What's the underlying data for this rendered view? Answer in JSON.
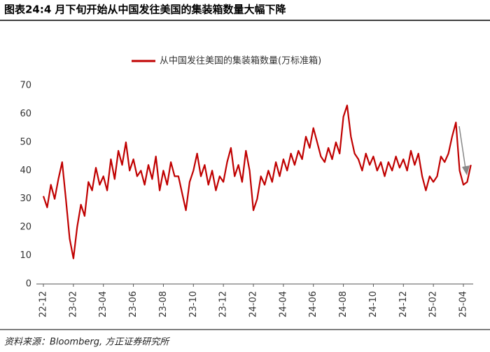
{
  "chart_data": {
    "type": "line",
    "title": "图表24:4 月下旬开始从中国发往美国的集装箱数量大幅下降",
    "source": "资料来源：Bloomberg, 方正证券研究所",
    "categories": [
      "22-12",
      null,
      null,
      null,
      null,
      null,
      null,
      null,
      "23-02",
      null,
      null,
      null,
      null,
      null,
      null,
      null,
      "23-04",
      null,
      null,
      null,
      null,
      null,
      null,
      null,
      "23-06",
      null,
      null,
      null,
      null,
      null,
      null,
      null,
      "23-08",
      null,
      null,
      null,
      null,
      null,
      null,
      null,
      "23-10",
      null,
      null,
      null,
      null,
      null,
      null,
      null,
      "23-12",
      null,
      null,
      null,
      null,
      null,
      null,
      null,
      "24-02",
      null,
      null,
      null,
      null,
      null,
      null,
      null,
      "24-04",
      null,
      null,
      null,
      null,
      null,
      null,
      null,
      "24-06",
      null,
      null,
      null,
      null,
      null,
      null,
      null,
      "24-08",
      null,
      null,
      null,
      null,
      null,
      null,
      null,
      "24-10",
      null,
      null,
      null,
      null,
      null,
      null,
      null,
      "24-12",
      null,
      null,
      null,
      null,
      null,
      null,
      null,
      "25-02",
      null,
      null,
      null,
      null,
      null,
      null,
      null,
      "25-04",
      null,
      null
    ],
    "series": [
      {
        "name": "从中国发往美国的集装箱数量(万标准箱)",
        "color": "#c00000",
        "values": [
          31,
          27,
          35,
          30,
          37,
          43,
          30,
          16,
          9,
          20,
          28,
          24,
          36,
          33,
          41,
          35,
          38,
          33,
          44,
          37,
          47,
          42,
          50,
          40,
          44,
          38,
          40,
          35,
          42,
          37,
          45,
          33,
          40,
          35,
          43,
          38,
          38,
          32,
          26,
          36,
          40,
          46,
          38,
          42,
          35,
          40,
          33,
          38,
          36,
          43,
          48,
          38,
          42,
          36,
          47,
          40,
          26,
          30,
          38,
          35,
          40,
          36,
          43,
          38,
          44,
          40,
          46,
          42,
          47,
          44,
          52,
          48,
          55,
          50,
          45,
          43,
          48,
          44,
          50,
          46,
          59,
          63,
          52,
          46,
          44,
          40,
          46,
          42,
          45,
          40,
          43,
          38,
          43,
          40,
          45,
          41,
          44,
          40,
          47,
          42,
          46,
          38,
          33,
          38,
          36,
          38,
          45,
          43,
          46,
          52,
          57,
          40,
          35,
          36,
          42
        ]
      }
    ],
    "ylim": [
      0,
      70
    ],
    "yticks": [
      0,
      10,
      20,
      30,
      40,
      50,
      60,
      70
    ],
    "grid": false
  }
}
